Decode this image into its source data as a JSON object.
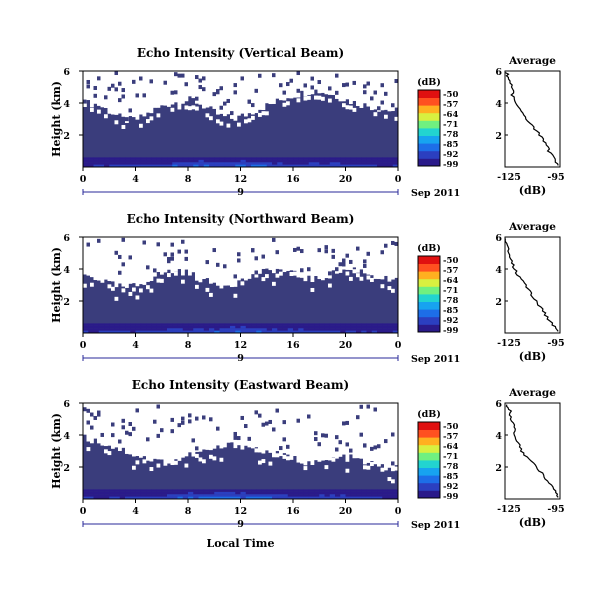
{
  "colors": {
    "background": "#3a3d7c",
    "colormap": [
      "#2a1a8a",
      "#2b3fc0",
      "#1d6ee8",
      "#17a3f0",
      "#22d4d0",
      "#70f080",
      "#d8f040",
      "#ffb020",
      "#ff5020",
      "#e01010"
    ]
  },
  "chart_data": [
    {
      "type": "heatmap",
      "title": "Echo Intensity (Vertical Beam)",
      "ylabel": "Height (km)",
      "ylim": [
        0,
        6
      ],
      "yticks": [
        "6",
        "4",
        "2"
      ],
      "xlim": [
        0,
        24
      ],
      "xticks": [
        "0",
        "4",
        "8",
        "12",
        "16",
        "20",
        "0"
      ],
      "date_label": "Sep 2011",
      "day_label": "9",
      "colorbar": {
        "unit": "(dB)",
        "ticks": [
          "-50",
          "-57",
          "-64",
          "-71",
          "-78",
          "-85",
          "-92",
          "-99"
        ],
        "range": [
          -99,
          -50
        ]
      },
      "masked_above_km": [
        4.0,
        3.9,
        3.4,
        2.9,
        3.0,
        3.5,
        3.9,
        4.1,
        4.2,
        3.7,
        3.2,
        3.0,
        3.3,
        3.7,
        4.0,
        4.4,
        4.6,
        4.8,
        4.6,
        4.3,
        4.0,
        3.8,
        3.6,
        3.5
      ],
      "near_ground_intensity_db": [
        -95,
        -94,
        -93,
        -92,
        -93,
        -92,
        -91,
        -90,
        -90,
        -89,
        -90,
        -89,
        -88,
        -89,
        -90,
        -91,
        -92,
        -92,
        -91,
        -92,
        -93,
        -94,
        -95,
        -95
      ],
      "average_profile": {
        "title": "Average",
        "xlabel": "(dB)",
        "xlim": [
          -125,
          -95
        ],
        "xticks": [
          "-125",
          "-95"
        ],
        "ylim": [
          0,
          6
        ],
        "yticks": [
          "6",
          "4",
          "2"
        ],
        "height_km": [
          5.9,
          5.5,
          5.0,
          4.5,
          4.0,
          3.5,
          3.0,
          2.5,
          2.0,
          1.5,
          1.0,
          0.5,
          0.1
        ],
        "intensity_db": [
          -124,
          -123,
          -121,
          -121,
          -119,
          -116,
          -113,
          -110,
          -106,
          -103,
          -101,
          -98,
          -96
        ]
      }
    },
    {
      "type": "heatmap",
      "title": "Echo Intensity (Northward Beam)",
      "ylabel": "Height (km)",
      "ylim": [
        0,
        6
      ],
      "yticks": [
        "6",
        "4",
        "2"
      ],
      "xlim": [
        0,
        24
      ],
      "xticks": [
        "0",
        "4",
        "8",
        "12",
        "16",
        "20",
        "0"
      ],
      "date_label": "Sep 2011",
      "day_label": "9",
      "colorbar": {
        "unit": "(dB)",
        "ticks": [
          "-50",
          "-57",
          "-64",
          "-71",
          "-78",
          "-85",
          "-92",
          "-99"
        ],
        "range": [
          -99,
          -50
        ]
      },
      "masked_above_km": [
        3.6,
        3.4,
        3.0,
        2.8,
        3.0,
        3.5,
        3.8,
        3.9,
        3.6,
        3.2,
        3.0,
        3.1,
        3.4,
        3.7,
        4.0,
        3.8,
        3.5,
        3.3,
        3.6,
        3.9,
        4.0,
        3.7,
        3.4,
        3.2
      ],
      "near_ground_intensity_db": [
        -95,
        -94,
        -94,
        -93,
        -93,
        -92,
        -92,
        -91,
        -91,
        -90,
        -90,
        -89,
        -89,
        -90,
        -91,
        -92,
        -92,
        -92,
        -93,
        -93,
        -94,
        -94,
        -95,
        -95
      ],
      "average_profile": {
        "title": "Average",
        "xlabel": "(dB)",
        "xlim": [
          -125,
          -95
        ],
        "xticks": [
          "-125",
          "-95"
        ],
        "ylim": [
          0,
          6
        ],
        "yticks": [
          "6",
          "4",
          "2"
        ],
        "height_km": [
          5.9,
          5.5,
          5.0,
          4.5,
          4.0,
          3.5,
          3.0,
          2.5,
          2.0,
          1.5,
          1.0,
          0.5,
          0.1
        ],
        "intensity_db": [
          -125,
          -124,
          -123,
          -121,
          -120,
          -117,
          -114,
          -111,
          -108,
          -105,
          -102,
          -99,
          -96
        ]
      }
    },
    {
      "type": "heatmap",
      "title": "Echo Intensity (Eastward Beam)",
      "ylabel": "Height (km)",
      "xlabel": "Local Time",
      "ylim": [
        0,
        6
      ],
      "yticks": [
        "6",
        "4",
        "2"
      ],
      "xlim": [
        0,
        24
      ],
      "xticks": [
        "0",
        "4",
        "8",
        "12",
        "16",
        "20",
        "0"
      ],
      "date_label": "Sep 2011",
      "day_label": "9",
      "colorbar": {
        "unit": "(dB)",
        "ticks": [
          "-50",
          "-57",
          "-64",
          "-71",
          "-78",
          "-85",
          "-92",
          "-99"
        ],
        "range": [
          -99,
          -50
        ]
      },
      "masked_above_km": [
        3.8,
        3.6,
        3.3,
        3.0,
        2.7,
        2.4,
        2.3,
        2.5,
        2.8,
        3.0,
        3.2,
        3.4,
        3.3,
        3.0,
        2.8,
        2.6,
        2.4,
        2.2,
        2.4,
        2.6,
        2.5,
        2.2,
        2.0,
        1.9
      ],
      "near_ground_intensity_db": [
        -95,
        -95,
        -94,
        -93,
        -93,
        -92,
        -91,
        -90,
        -89,
        -89,
        -88,
        -88,
        -89,
        -90,
        -90,
        -91,
        -92,
        -92,
        -91,
        -91,
        -92,
        -93,
        -94,
        -95
      ],
      "average_profile": {
        "title": "Average",
        "xlabel": "(dB)",
        "xlim": [
          -125,
          -95
        ],
        "xticks": [
          "-125",
          "-95"
        ],
        "ylim": [
          0,
          6
        ],
        "yticks": [
          "6",
          "4",
          "2"
        ],
        "height_km": [
          5.9,
          5.5,
          5.0,
          4.5,
          4.0,
          3.5,
          3.0,
          2.5,
          2.0,
          1.5,
          1.0,
          0.5,
          0.1
        ],
        "intensity_db": [
          -124,
          -122,
          -122,
          -120,
          -120,
          -118,
          -116,
          -112,
          -108,
          -104,
          -101,
          -98,
          -96
        ]
      }
    }
  ]
}
